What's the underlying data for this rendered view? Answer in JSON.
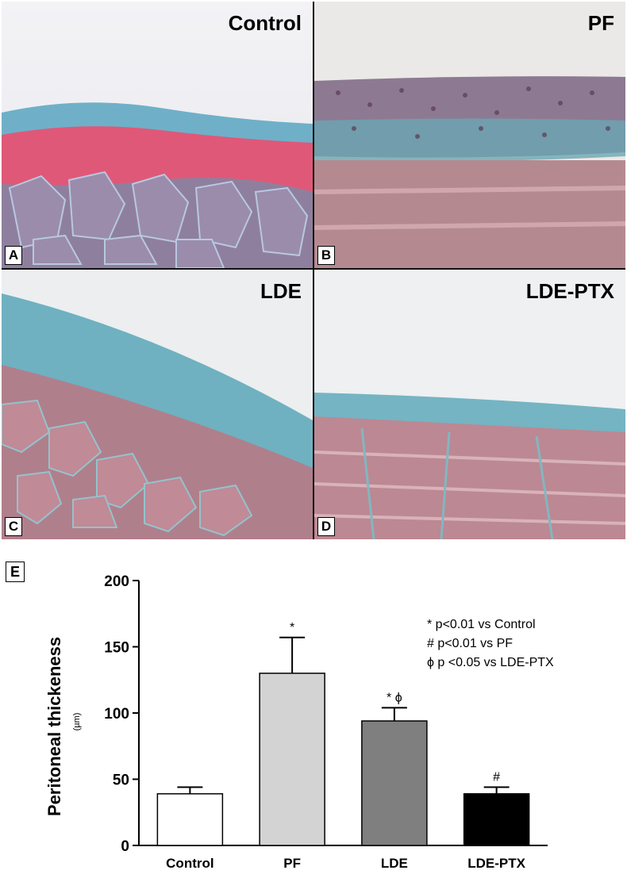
{
  "panels": [
    {
      "letter": "A",
      "title": "Control"
    },
    {
      "letter": "B",
      "title": "PF"
    },
    {
      "letter": "C",
      "title": "LDE"
    },
    {
      "letter": "D",
      "title": "LDE-PTX"
    }
  ],
  "chart_letter": "E",
  "chart_data": {
    "type": "bar",
    "categories": [
      "Control",
      "PF",
      "LDE",
      "LDE-PTX"
    ],
    "values": [
      39,
      130,
      94,
      39
    ],
    "errors": [
      5,
      27,
      10,
      5
    ],
    "bar_colors": [
      "#ffffff",
      "#d3d3d3",
      "#7f7f7f",
      "#000000"
    ],
    "markers": [
      "",
      "*",
      "*  ϕ",
      "#"
    ],
    "ylabel": "Peritoneal thickeness",
    "ylabel_unit": "(µm)",
    "ylim": [
      0,
      200
    ],
    "yticks": [
      0,
      50,
      100,
      150,
      200
    ],
    "legend": [
      "* p<0.01 vs Control",
      "# p<0.01 vs PF",
      "ϕ p <0.05 vs LDE-PTX"
    ]
  }
}
